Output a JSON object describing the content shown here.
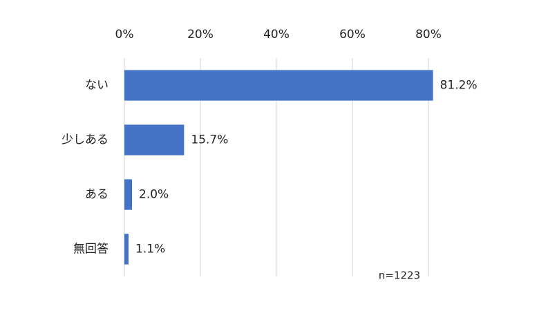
{
  "chart_data": {
    "type": "hbar",
    "categories": [
      "ない",
      "少しある",
      "ある",
      "無回答"
    ],
    "values": [
      81.2,
      15.7,
      2.0,
      1.1
    ],
    "value_labels": [
      "81.2%",
      "15.7%",
      "2.0%",
      "1.1%"
    ],
    "color": "#4472c4",
    "xlim": [
      0,
      82
    ],
    "xticks": [
      {
        "value": 0,
        "label": "0%"
      },
      {
        "value": 20,
        "label": "20%"
      },
      {
        "value": 40,
        "label": "40%"
      },
      {
        "value": 60,
        "label": "60%"
      },
      {
        "value": 80,
        "label": "80%"
      }
    ],
    "grid": true,
    "annotation": "n=1223"
  }
}
